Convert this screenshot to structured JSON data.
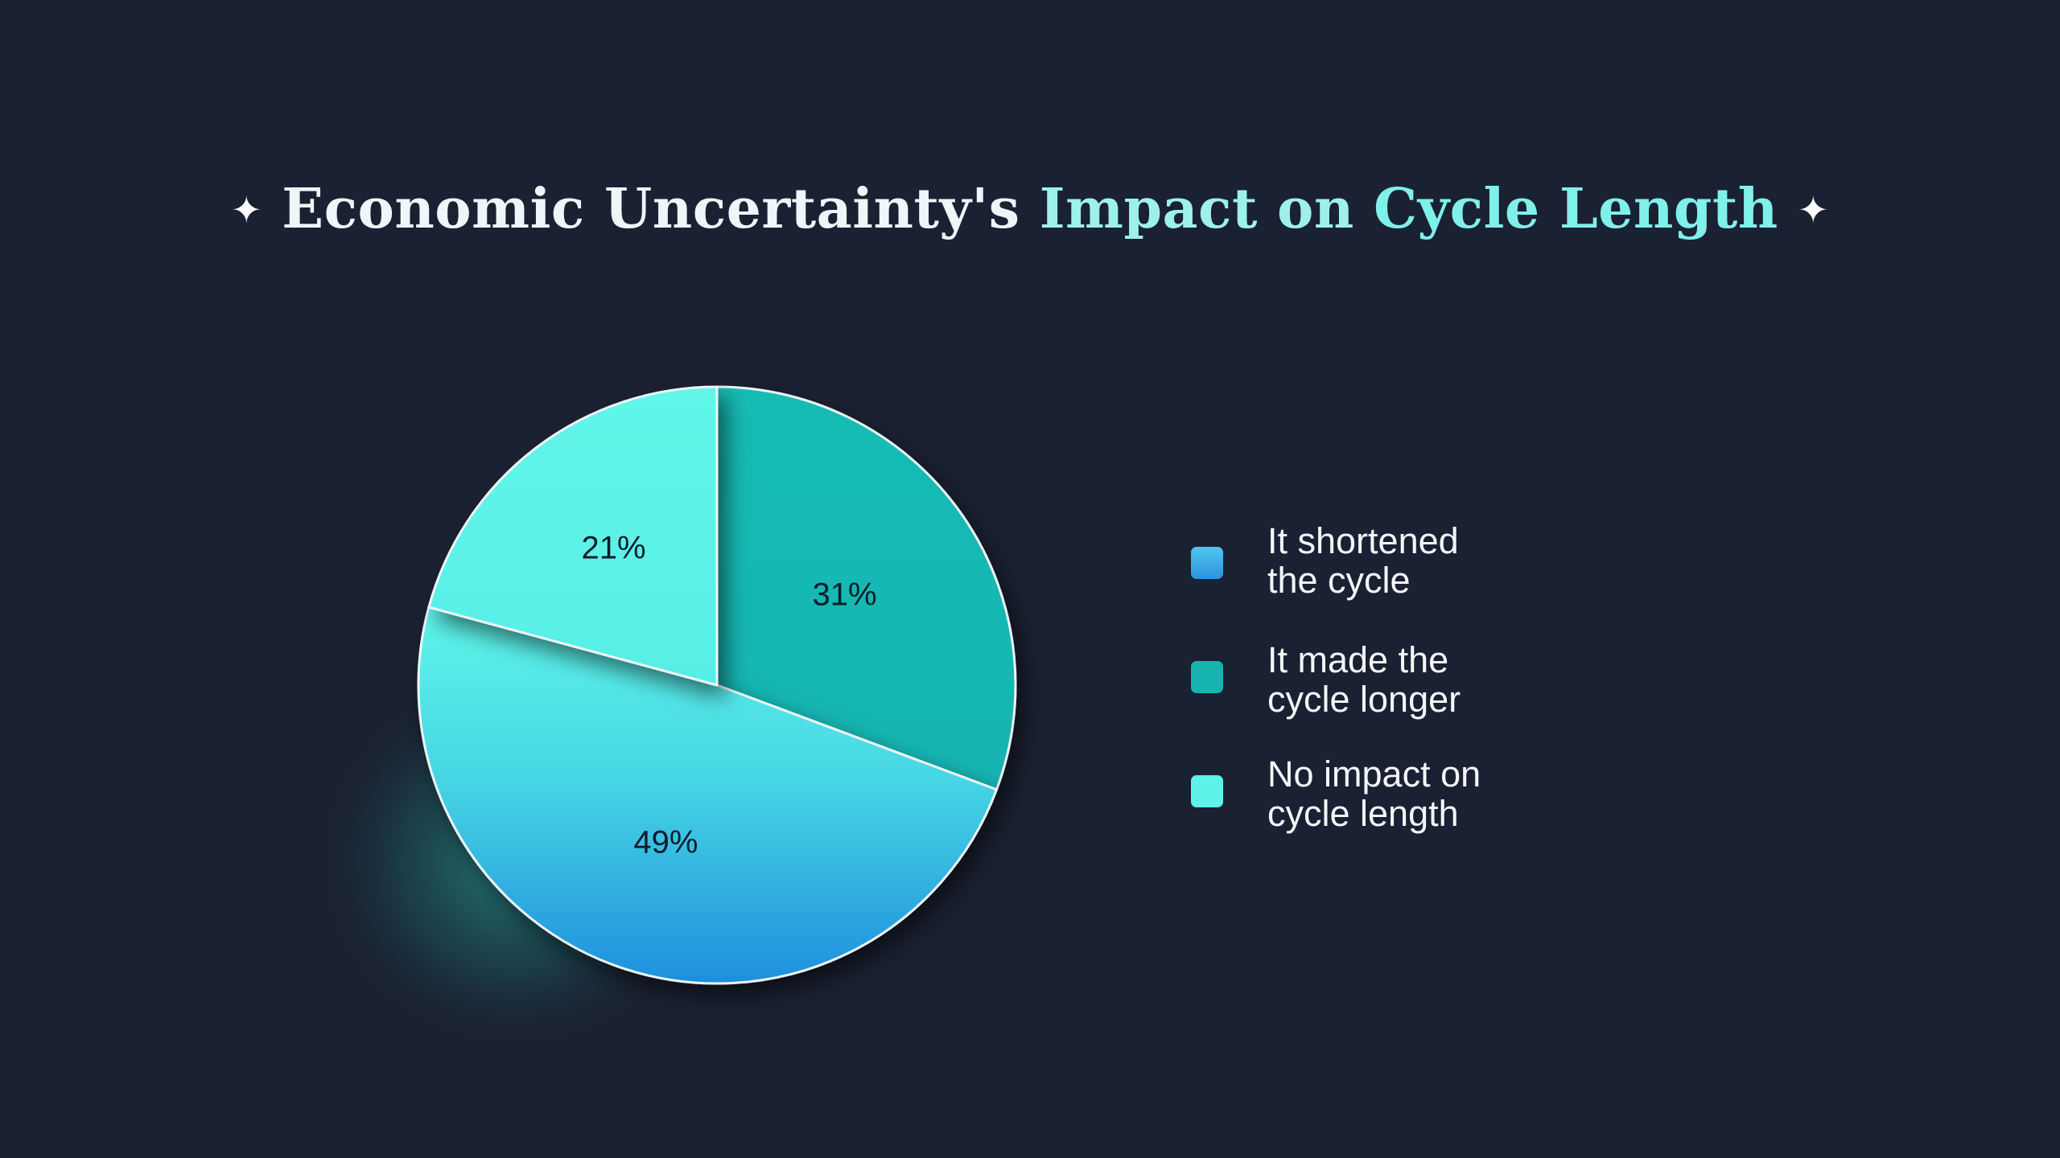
{
  "title": {
    "part1": "Economic Uncertainty's",
    "part2": "Impact on",
    "part3": "Cycle Length"
  },
  "colors": {
    "background": "#1a2132",
    "shortened": "#33a6e0",
    "longer": "#17b9b3",
    "no_impact": "#5ef2e8"
  },
  "chart_data": {
    "type": "pie",
    "title": "Economic Uncertainty's Impact on Cycle Length",
    "slices": [
      {
        "label": "It made the cycle longer",
        "value": 31,
        "display": "31%"
      },
      {
        "label": "It shortened the cycle",
        "value": 49,
        "display": "49%"
      },
      {
        "label": "No impact on cycle length",
        "value": 21,
        "display": "21%"
      }
    ],
    "legend": {
      "position": "right",
      "items": [
        {
          "line1": "It shortened",
          "line2": "the cycle",
          "color": "#33a6e0"
        },
        {
          "line1": "It made the",
          "line2": "cycle longer",
          "color": "#17b9b3"
        },
        {
          "line1": "No impact on",
          "line2": "cycle length",
          "color": "#5ef2e8"
        }
      ]
    }
  }
}
